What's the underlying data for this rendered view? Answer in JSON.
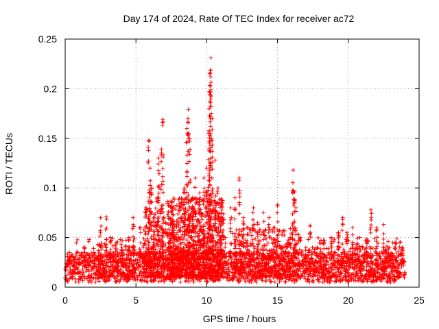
{
  "chart_data": {
    "type": "scatter",
    "title": "Day 174 of 2024, Rate Of TEC Index for receiver ac72",
    "xlabel": "GPS time / hours",
    "ylabel": "ROTI / TECUs",
    "xlim": [
      0,
      25
    ],
    "ylim": [
      0,
      0.25
    ],
    "xticks": [
      "0",
      "5",
      "10",
      "15",
      "20",
      "25"
    ],
    "yticks": [
      "0",
      "0.05",
      "0.1",
      "0.15",
      "0.2",
      "0.25"
    ],
    "xtick_values": [
      0,
      5,
      10,
      15,
      20,
      25
    ],
    "ytick_values": [
      0,
      0.05,
      0.1,
      0.15,
      0.2,
      0.25
    ],
    "grid": true,
    "marker": "+",
    "color": "#ff0000",
    "series": [
      {
        "name": "ROTI",
        "x_range": [
          0,
          24
        ],
        "points": [
          [
            0.3,
            0.035
          ],
          [
            0.6,
            0.03
          ],
          [
            1.0,
            0.032
          ],
          [
            1.4,
            0.04
          ],
          [
            1.7,
            0.048
          ],
          [
            2.1,
            0.03
          ],
          [
            2.5,
            0.07
          ],
          [
            2.9,
            0.071
          ],
          [
            3.2,
            0.05
          ],
          [
            3.6,
            0.045
          ],
          [
            4.0,
            0.04
          ],
          [
            4.5,
            0.05
          ],
          [
            4.8,
            0.07
          ],
          [
            5.3,
            0.06
          ],
          [
            5.7,
            0.08
          ],
          [
            5.9,
            0.148
          ],
          [
            6.0,
            0.12
          ],
          [
            6.1,
            0.1
          ],
          [
            6.3,
            0.07
          ],
          [
            6.5,
            0.09
          ],
          [
            6.6,
            0.13
          ],
          [
            6.8,
            0.139
          ],
          [
            6.9,
            0.169
          ],
          [
            7.1,
            0.065
          ],
          [
            7.3,
            0.045
          ],
          [
            7.6,
            0.06
          ],
          [
            7.9,
            0.055
          ],
          [
            8.2,
            0.07
          ],
          [
            8.4,
            0.1
          ],
          [
            8.6,
            0.16
          ],
          [
            8.7,
            0.179
          ],
          [
            8.8,
            0.15
          ],
          [
            9.0,
            0.09
          ],
          [
            9.2,
            0.11
          ],
          [
            9.5,
            0.095
          ],
          [
            9.8,
            0.11
          ],
          [
            10.0,
            0.12
          ],
          [
            10.15,
            0.155
          ],
          [
            10.2,
            0.197
          ],
          [
            10.25,
            0.216
          ],
          [
            10.3,
            0.231
          ],
          [
            10.4,
            0.17
          ],
          [
            10.6,
            0.128
          ],
          [
            10.8,
            0.1
          ],
          [
            11.0,
            0.07
          ],
          [
            11.3,
            0.05
          ],
          [
            11.7,
            0.08
          ],
          [
            12.0,
            0.09
          ],
          [
            12.3,
            0.11
          ],
          [
            12.6,
            0.07
          ],
          [
            12.9,
            0.06
          ],
          [
            13.3,
            0.08
          ],
          [
            13.6,
            0.065
          ],
          [
            14.0,
            0.075
          ],
          [
            14.4,
            0.07
          ],
          [
            14.8,
            0.06
          ],
          [
            15.0,
            0.083
          ],
          [
            15.4,
            0.04
          ],
          [
            15.9,
            0.05
          ],
          [
            16.1,
            0.118
          ],
          [
            16.2,
            0.096
          ],
          [
            16.3,
            0.08
          ],
          [
            16.6,
            0.05
          ],
          [
            17.0,
            0.04
          ],
          [
            17.3,
            0.062
          ],
          [
            17.8,
            0.04
          ],
          [
            18.3,
            0.045
          ],
          [
            18.8,
            0.05
          ],
          [
            19.3,
            0.055
          ],
          [
            19.6,
            0.07
          ],
          [
            19.9,
            0.055
          ],
          [
            20.3,
            0.06
          ],
          [
            20.8,
            0.05
          ],
          [
            21.3,
            0.045
          ],
          [
            21.6,
            0.078
          ],
          [
            22.0,
            0.06
          ],
          [
            22.5,
            0.063
          ],
          [
            22.9,
            0.04
          ],
          [
            23.3,
            0.045
          ],
          [
            23.8,
            0.04
          ]
        ],
        "baseline_band": [
          0.005,
          0.035
        ]
      }
    ]
  }
}
